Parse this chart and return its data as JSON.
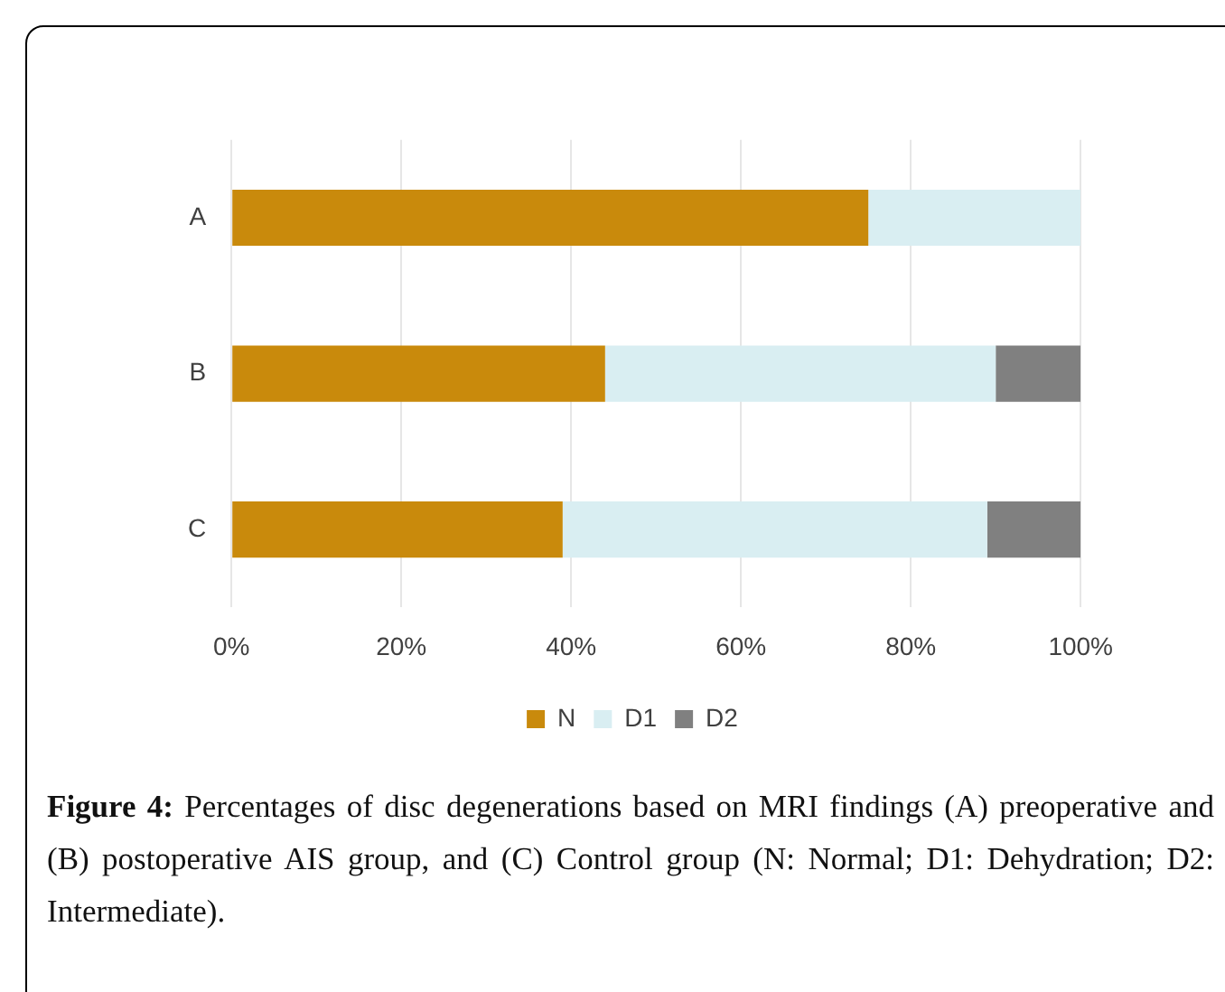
{
  "chart_data": {
    "type": "bar",
    "orientation": "horizontal",
    "stacked": true,
    "categories": [
      "A",
      "B",
      "C"
    ],
    "series": [
      {
        "name": "N",
        "color": "#c98a0c",
        "values": [
          75,
          44,
          39
        ]
      },
      {
        "name": "D1",
        "color": "#d9eef2",
        "values": [
          25,
          46,
          50
        ]
      },
      {
        "name": "D2",
        "color": "#808080",
        "values": [
          0,
          10,
          11
        ]
      }
    ],
    "xlim": [
      0,
      100
    ],
    "xticks": [
      {
        "value": 0,
        "label": "0%"
      },
      {
        "value": 20,
        "label": "20%"
      },
      {
        "value": 40,
        "label": "40%"
      },
      {
        "value": 60,
        "label": "60%"
      },
      {
        "value": 80,
        "label": "80%"
      },
      {
        "value": 100,
        "label": "100%"
      }
    ],
    "grid": "x",
    "legend": "bottom",
    "annotations": [
      "Figure 4:",
      "Percentages of disc degenerations based on MRI findings (A) preoperative and (B) postoperative AIS group, and (C) Control group (N: Normal; D1: Dehydration; D2: Intermediate)."
    ]
  }
}
